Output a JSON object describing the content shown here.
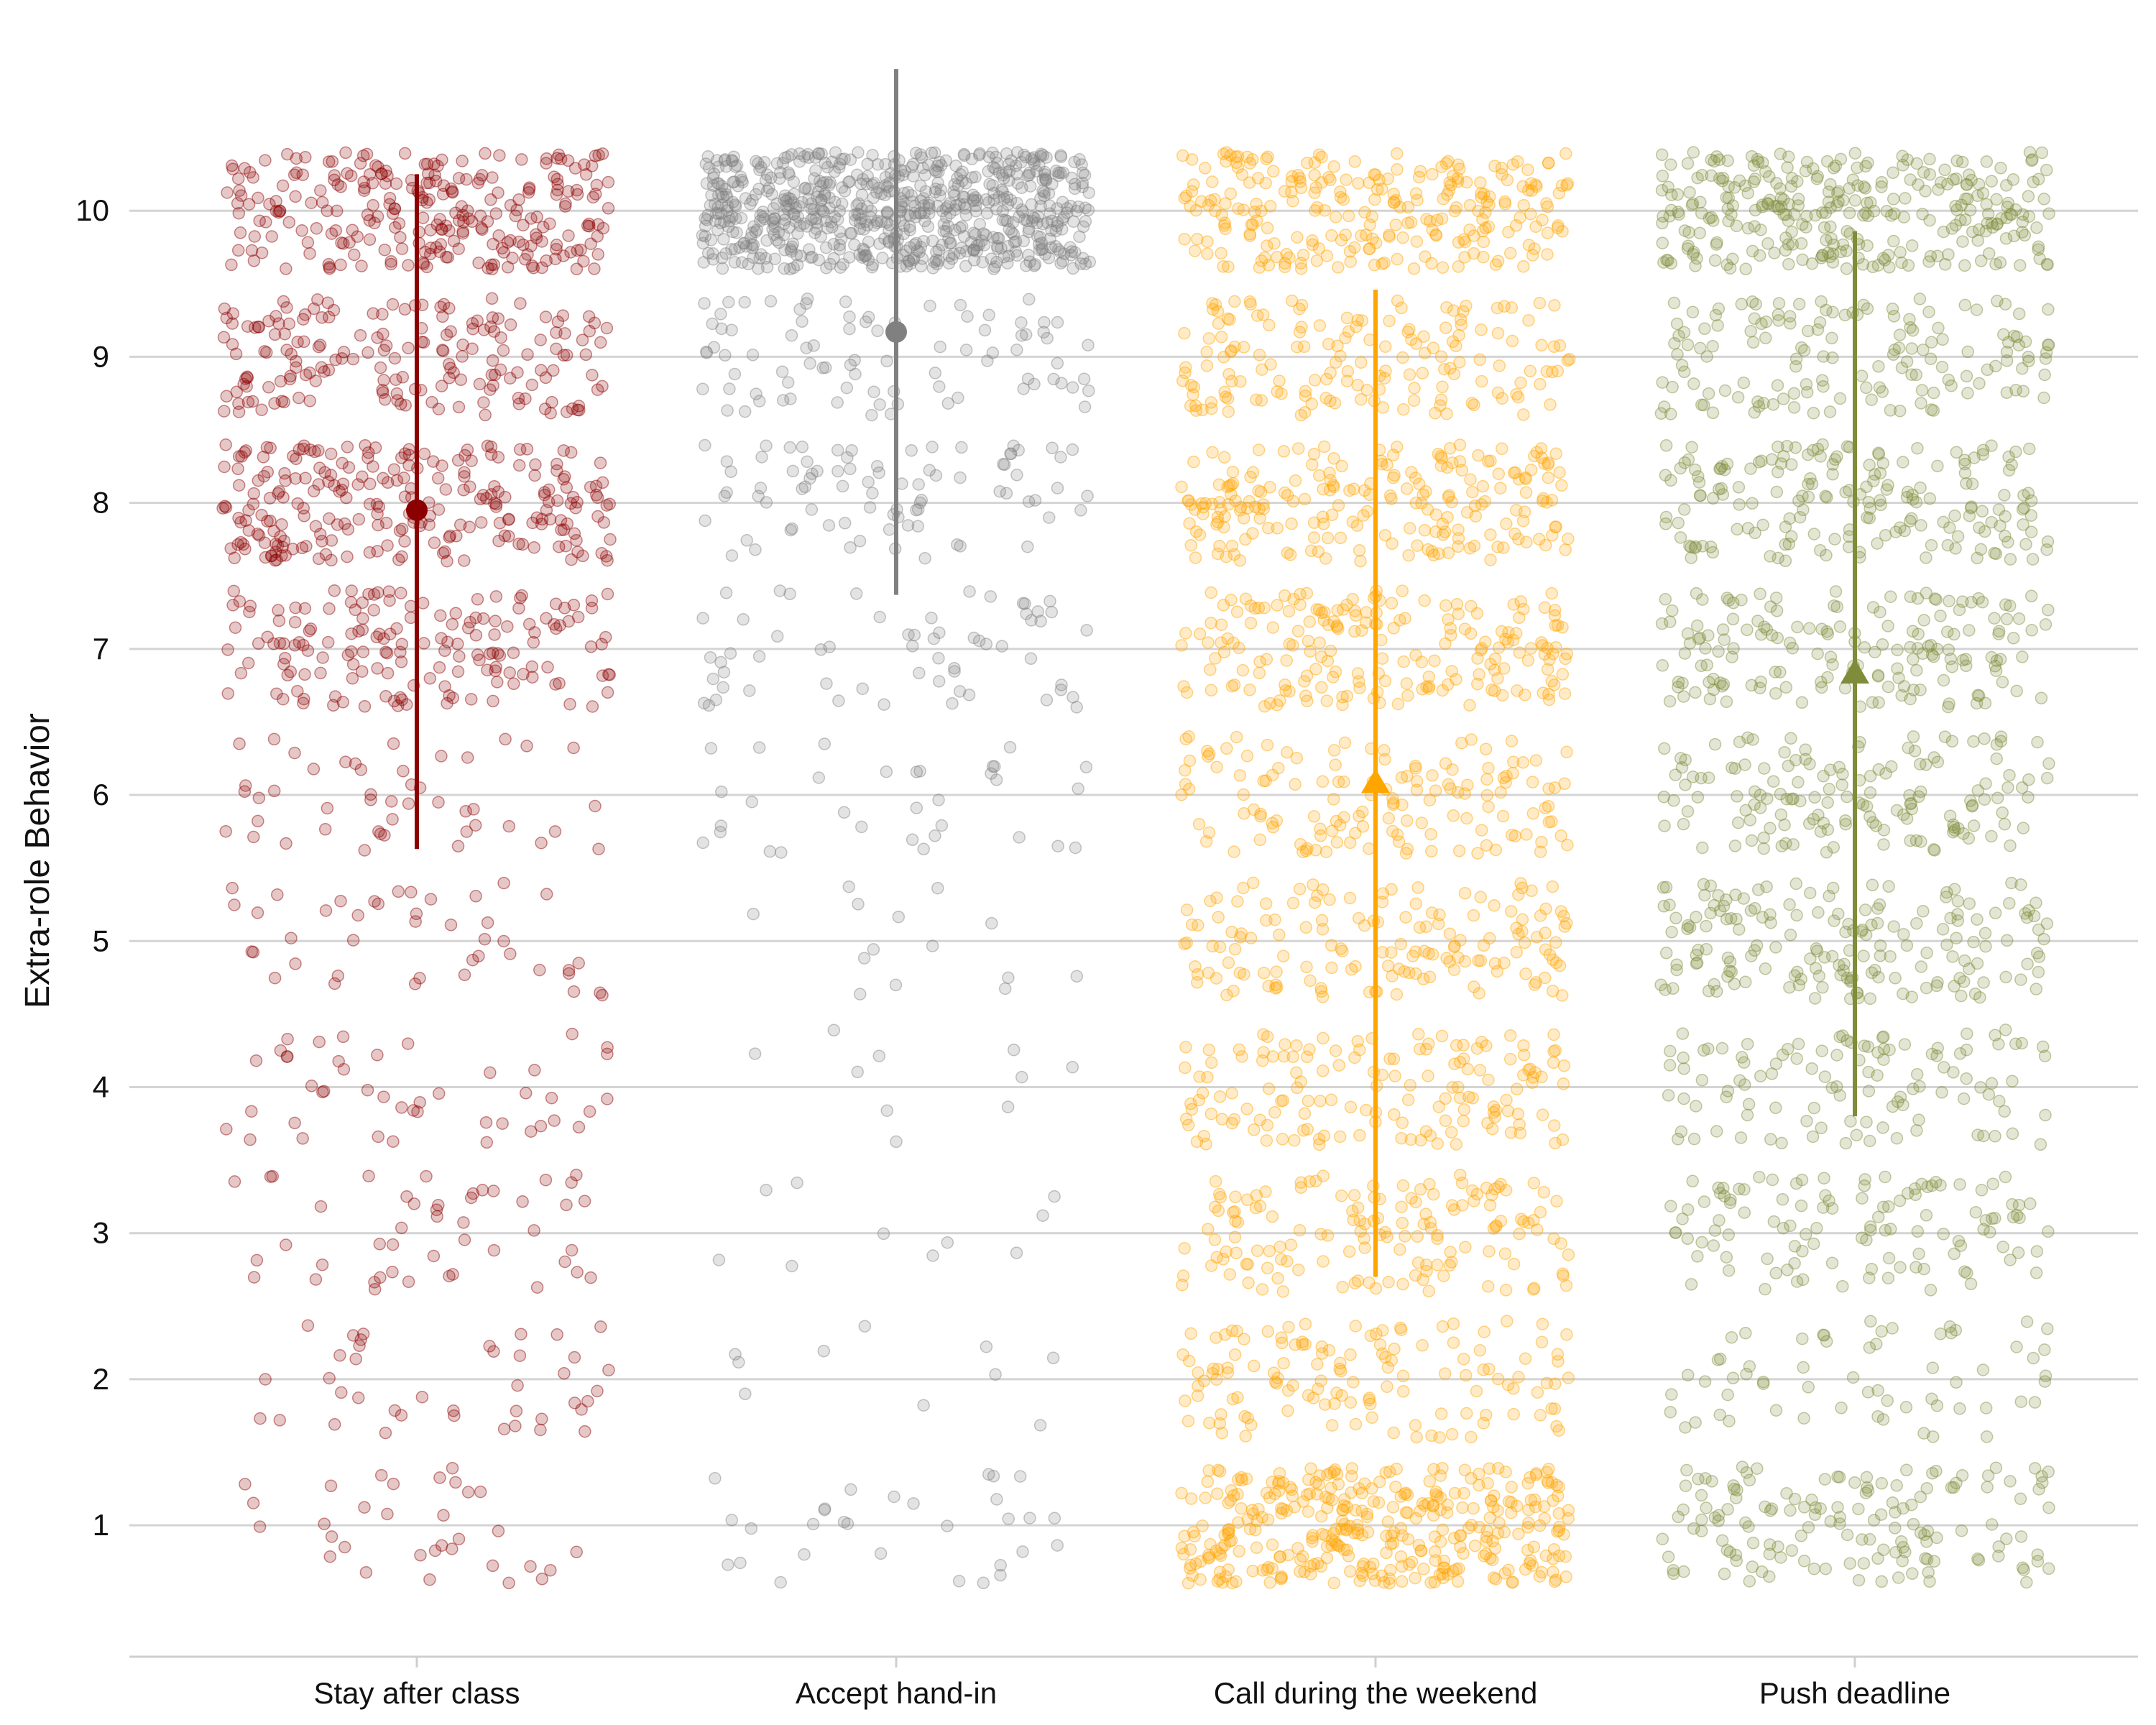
{
  "chart_data": {
    "type": "scatter",
    "title": "",
    "xlabel": "",
    "ylabel": "Extra-role Behavior",
    "ylim": [
      0.1,
      11.0
    ],
    "yticks": [
      1,
      2,
      3,
      4,
      5,
      6,
      7,
      8,
      9,
      10
    ],
    "grid": "horizontal",
    "legend": "none",
    "categories": [
      "Stay after class",
      "Accept hand-in",
      "Call during the weekend",
      "Push deadline"
    ],
    "jitter_points_per_response_level": [
      {
        "category": "Stay after class",
        "color": "#8b0000",
        "counts": {
          "1": 32,
          "2": 40,
          "3": 46,
          "4": 44,
          "5": 42,
          "6": 46,
          "7": 162,
          "8": 245,
          "9": 178,
          "10": 264
        }
      },
      {
        "category": "Accept hand-in",
        "color": "#808080",
        "counts": {
          "1": 30,
          "2": 10,
          "3": 10,
          "4": 10,
          "5": 14,
          "6": 32,
          "7": 60,
          "8": 82,
          "9": 86,
          "10": 685
        }
      },
      {
        "category": "Call during the weekend",
        "color": "#ffa500",
        "counts": {
          "1": 360,
          "2": 132,
          "3": 148,
          "4": 150,
          "5": 150,
          "6": 140,
          "7": 196,
          "8": 212,
          "9": 160,
          "10": 252
        }
      },
      {
        "category": "Push deadline",
        "color": "#7f8c3a",
        "counts": {
          "1": 146,
          "2": 62,
          "3": 116,
          "4": 110,
          "5": 176,
          "6": 150,
          "7": 166,
          "8": 182,
          "9": 148,
          "10": 300
        }
      }
    ],
    "summary": [
      {
        "category": "Stay after class",
        "mean": 7.95,
        "lower": 5.63,
        "upper": 10.25,
        "marker": "circle",
        "color": "#8b0000"
      },
      {
        "category": "Accept hand-in",
        "mean": 9.17,
        "lower": 7.37,
        "upper": 10.97,
        "marker": "circle",
        "color": "#808080"
      },
      {
        "category": "Call during the weekend",
        "mean": 6.08,
        "lower": 2.7,
        "upper": 9.46,
        "marker": "triangle",
        "color": "#ffa500"
      },
      {
        "category": "Push deadline",
        "mean": 6.83,
        "lower": 3.8,
        "upper": 9.86,
        "marker": "triangle",
        "color": "#7f8c3a"
      }
    ]
  }
}
